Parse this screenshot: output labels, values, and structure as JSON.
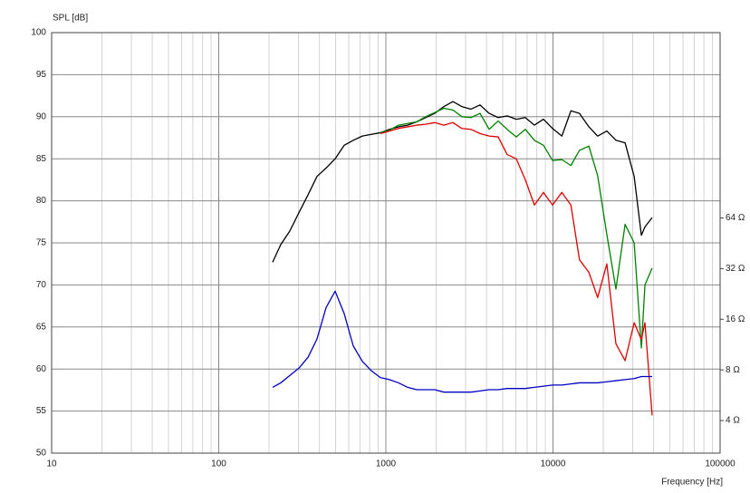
{
  "chart_data": {
    "type": "line",
    "y_label": "SPL [dB]",
    "x_label": "Frequency [Hz]",
    "x_log": true,
    "y2_log": true,
    "grid": true,
    "xlim": [
      10,
      100000
    ],
    "xticks": [
      10,
      100,
      1000,
      10000,
      100000
    ],
    "ylim": [
      50,
      100
    ],
    "yticks": [
      50,
      55,
      60,
      65,
      70,
      75,
      80,
      85,
      90,
      95,
      100
    ],
    "y2lim": [
      2.56,
      809
    ],
    "y2ticks": [
      {
        "value": 4,
        "label": "4 Ω"
      },
      {
        "value": 8,
        "label": "8 Ω"
      },
      {
        "value": 16,
        "label": "16 Ω"
      },
      {
        "value": 32,
        "label": "32 Ω"
      },
      {
        "value": 64,
        "label": "64 Ω"
      }
    ],
    "x": [
      210,
      235,
      266,
      302,
      342,
      387,
      439,
      497,
      563,
      638,
      723,
      819,
      927,
      1050,
      1190,
      1350,
      1530,
      1730,
      1960,
      2220,
      2520,
      2850,
      3230,
      3660,
      4150,
      4700,
      5320,
      6030,
      6830,
      7740,
      8770,
      9940,
      11300,
      12800,
      14400,
      16400,
      18500,
      21000,
      23800,
      27000,
      30600,
      33800,
      35500,
      39200
    ],
    "series": [
      {
        "color": "#000000",
        "values": [
          72.7,
          74.8,
          76.4,
          78.6,
          80.7,
          82.9,
          83.9,
          85.0,
          86.6,
          87.2,
          87.7,
          87.9,
          88.1,
          88.5,
          88.8,
          89.0,
          89.4,
          89.9,
          90.4,
          91.2,
          91.8,
          91.2,
          90.9,
          91.4,
          90.4,
          89.9,
          90.1,
          89.7,
          89.9,
          89.0,
          89.7,
          88.6,
          87.7,
          90.7,
          90.4,
          88.8,
          87.7,
          88.3,
          87.2,
          86.9,
          82.9,
          75.9,
          76.9,
          78.0
        ]
      },
      {
        "color": "#008000",
        "values": [
          null,
          null,
          null,
          null,
          null,
          null,
          null,
          null,
          null,
          null,
          null,
          null,
          88.1,
          88.4,
          89.0,
          89.2,
          89.4,
          90.0,
          90.5,
          91.0,
          90.8,
          90.0,
          89.9,
          90.4,
          88.5,
          89.5,
          88.5,
          87.6,
          88.5,
          87.2,
          86.6,
          84.8,
          84.9,
          84.2,
          86.0,
          86.5,
          83.0,
          76.0,
          69.5,
          77.2,
          75.0,
          62.5,
          70.0,
          72.0
        ]
      },
      {
        "color": "#e00000",
        "values": [
          null,
          null,
          null,
          null,
          null,
          null,
          null,
          null,
          null,
          null,
          null,
          null,
          88.0,
          88.3,
          88.6,
          88.8,
          89.0,
          89.1,
          89.3,
          89.0,
          89.3,
          88.6,
          88.5,
          88.0,
          87.7,
          87.6,
          85.5,
          85.0,
          82.5,
          79.5,
          81.0,
          79.5,
          81.0,
          79.5,
          73.0,
          71.5,
          68.5,
          72.5,
          63.0,
          61.0,
          65.5,
          63.5,
          65.5,
          54.5
        ]
      },
      {
        "color": "#0000c0",
        "axis": "y2",
        "values": [
          6.3,
          6.7,
          7.4,
          8.2,
          9.5,
          12.2,
          18.8,
          23.5,
          17.3,
          11.1,
          9.0,
          7.9,
          7.2,
          7.0,
          6.7,
          6.3,
          6.1,
          6.1,
          6.1,
          5.9,
          5.9,
          5.9,
          5.9,
          6.0,
          6.1,
          6.1,
          6.2,
          6.2,
          6.2,
          6.3,
          6.4,
          6.5,
          6.5,
          6.6,
          6.7,
          6.7,
          6.7,
          6.8,
          6.9,
          7.0,
          7.1,
          7.3,
          7.3,
          7.3
        ]
      }
    ]
  }
}
